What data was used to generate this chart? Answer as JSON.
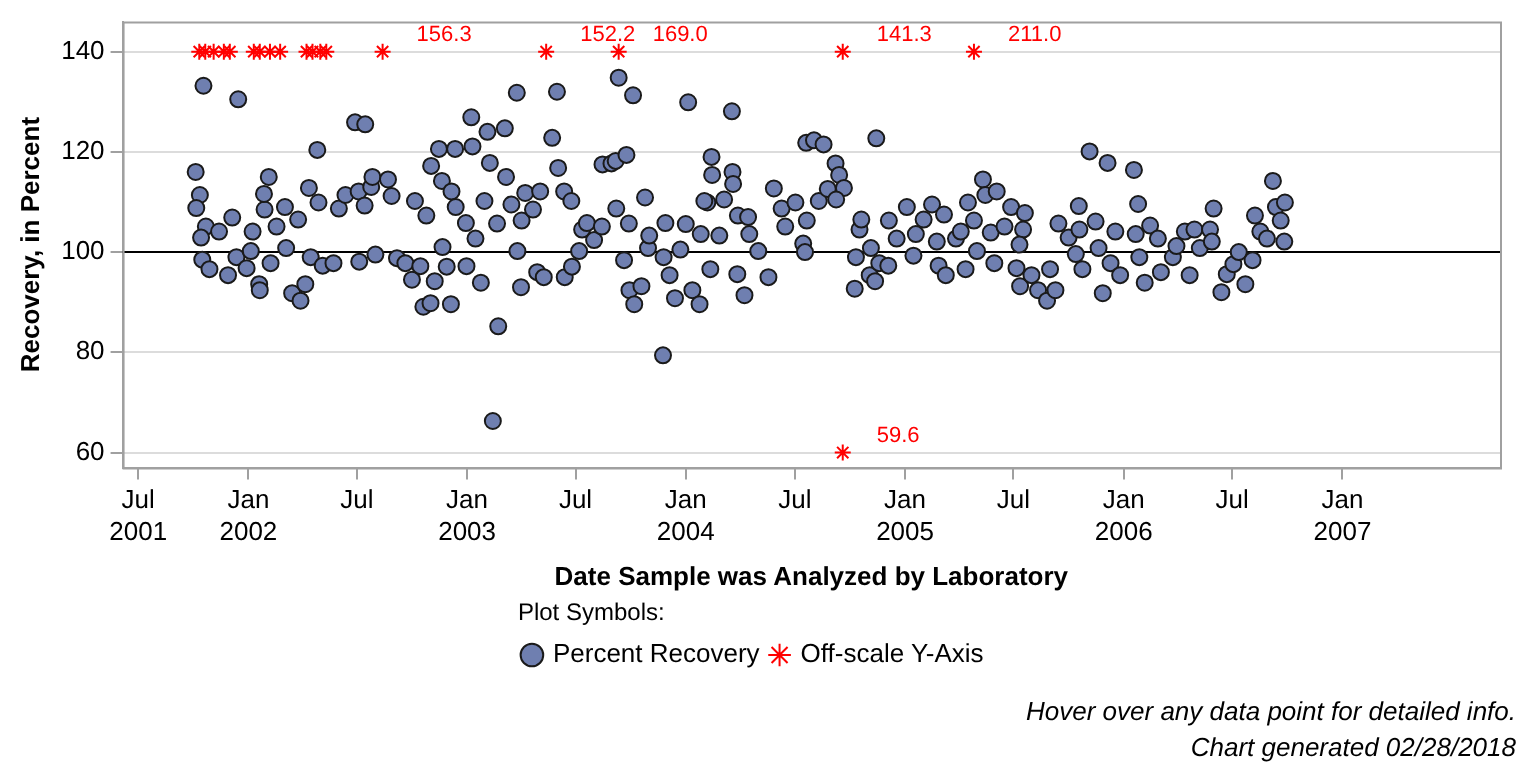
{
  "chart_data": {
    "type": "scatter",
    "xlabel": "Date Sample was Analyzed by Laboratory",
    "ylabel": "Recovery, in Percent",
    "legend_title": "Plot Symbols:",
    "legend": "bottom",
    "grid": "y",
    "xlim": [
      "2001-06-05",
      "2007-09-21"
    ],
    "ylim": [
      57,
      146
    ],
    "xticks": [
      {
        "value": "2001-07-01",
        "label": "Jul 2001"
      },
      {
        "value": "2002-01-01",
        "label": "Jan 2002"
      },
      {
        "value": "2002-07-01",
        "label": "Jul"
      },
      {
        "value": "2003-01-01",
        "label": "Jan 2003"
      },
      {
        "value": "2003-07-01",
        "label": "Jul"
      },
      {
        "value": "2004-01-01",
        "label": "Jan 2004"
      },
      {
        "value": "2004-07-01",
        "label": "Jul"
      },
      {
        "value": "2005-01-01",
        "label": "Jan 2005"
      },
      {
        "value": "2005-07-01",
        "label": "Jul"
      },
      {
        "value": "2006-01-01",
        "label": "Jan 2006"
      },
      {
        "value": "2006-07-01",
        "label": "Jul"
      },
      {
        "value": "2007-01-01",
        "label": "Jan 2007"
      }
    ],
    "yticks": [
      60,
      80,
      100,
      120,
      140
    ],
    "ref_lines": [
      {
        "axis": "y",
        "value": 100,
        "color": "#000000"
      }
    ],
    "series": [
      {
        "name": "Percent Recovery",
        "color": "#6f7fb0",
        "marker": "circle",
        "x": [
          "2001-10-18",
          "2001-12-15",
          "2001-10-05",
          "2001-10-12",
          "2001-10-06",
          "2001-10-22",
          "2001-10-14",
          "2001-10-16",
          "2001-10-28",
          "2001-11-13",
          "2001-11-28",
          "2001-12-05",
          "2001-12-12",
          "2001-12-29",
          "2002-01-05",
          "2002-01-08",
          "2002-01-19",
          "2002-01-20",
          "2002-01-28",
          "2002-02-04",
          "2002-01-27",
          "2002-02-07",
          "2002-02-17",
          "2002-03-03",
          "2002-03-05",
          "2002-03-15",
          "2002-03-29",
          "2002-04-06",
          "2002-03-25",
          "2002-04-12",
          "2002-04-26",
          "2002-04-28",
          "2002-04-15",
          "2002-05-05",
          "2002-05-23",
          "2002-06-01",
          "2002-06-12",
          "2002-06-28",
          "2002-07-15",
          "2002-07-04",
          "2002-07-05",
          "2002-07-14",
          "2002-07-25",
          "2002-07-27",
          "2002-08-01",
          "2002-08-22",
          "2002-08-28",
          "2002-09-06",
          "2002-09-20",
          "2002-10-01",
          "2002-10-06",
          "2002-10-15",
          "2002-10-20",
          "2002-11-01",
          "2002-10-25",
          "2002-11-02",
          "2002-11-08",
          "2002-11-15",
          "2002-11-20",
          "2002-11-21",
          "2002-11-28",
          "2002-12-05",
          "2002-12-06",
          "2002-12-12",
          "2002-12-13",
          "2002-12-30",
          "2002-12-31",
          "2003-01-08",
          "2003-01-10",
          "2003-01-15",
          "2003-01-24",
          "2003-01-30",
          "2003-02-04",
          "2003-02-08",
          "2003-02-13",
          "2003-02-22",
          "2003-02-20",
          "2003-03-05",
          "2003-03-07",
          "2003-03-16",
          "2003-03-25",
          "2003-03-26",
          "2003-04-01",
          "2003-04-02",
          "2003-04-08",
          "2003-04-21",
          "2003-05-03",
          "2003-04-28",
          "2003-05-09",
          "2003-05-23",
          "2003-05-31",
          "2003-06-02",
          "2003-06-12",
          "2003-06-13",
          "2003-06-24",
          "2003-06-25",
          "2003-07-07",
          "2003-07-12",
          "2003-07-20",
          "2003-08-01",
          "2003-08-14",
          "2003-08-15",
          "2003-08-30",
          "2003-09-06",
          "2003-09-24",
          "2003-09-07",
          "2003-09-11",
          "2003-10-05",
          "2003-09-20",
          "2003-09-28",
          "2003-09-29",
          "2003-10-07",
          "2003-10-19",
          "2003-10-25",
          "2003-10-30",
          "2003-11-01",
          "2003-11-24",
          "2003-11-28",
          "2003-11-25",
          "2003-12-05",
          "2003-12-14",
          "2003-12-23",
          "2004-01-01",
          "2004-01-05",
          "2004-01-12",
          "2004-01-24",
          "2004-01-26",
          "2004-02-13",
          "2004-02-14",
          "2004-02-06",
          "2004-02-11",
          "2004-03-18",
          "2004-03-19",
          "2004-03-20",
          "2004-02-01",
          "2004-03-05",
          "2004-03-28",
          "2004-04-14",
          "2004-03-27",
          "2004-04-08",
          "2004-05-18",
          "2004-02-26",
          "2004-04-16",
          "2004-05-01",
          "2004-05-27",
          "2004-06-09",
          "2004-06-15",
          "2004-07-02",
          "2004-07-15",
          "2004-07-18",
          "2004-07-20",
          "2004-08-02",
          "2004-08-18",
          "2004-07-21",
          "2004-08-10",
          "2004-08-25",
          "2004-09-07",
          "2004-09-13",
          "2004-09-21",
          "2004-09-08",
          "2004-10-09",
          "2004-10-11",
          "2004-10-17",
          "2004-10-20",
          "2004-11-03",
          "2004-11-14",
          "2004-11-12",
          "2004-11-19",
          "2004-11-05",
          "2004-12-04",
          "2004-12-05",
          "2004-12-18",
          "2005-01-04",
          "2005-01-19",
          "2005-01-15",
          "2005-02-01",
          "2005-02-15",
          "2005-02-23",
          "2005-02-26",
          "2005-03-07",
          "2005-03-10",
          "2005-03-27",
          "2005-04-04",
          "2005-04-12",
          "2005-04-16",
          "2005-04-26",
          "2005-05-01",
          "2005-05-11",
          "2005-05-15",
          "2005-06-03",
          "2005-05-24",
          "2005-05-30",
          "2005-06-16",
          "2005-06-27",
          "2005-07-17",
          "2005-07-11",
          "2005-07-06",
          "2005-07-12",
          "2005-07-20",
          "2005-07-31",
          "2005-08-11",
          "2005-08-26",
          "2005-08-31",
          "2005-09-09",
          "2005-09-14",
          "2005-10-01",
          "2005-10-18",
          "2005-10-19",
          "2005-10-13",
          "2005-10-24",
          "2005-11-05",
          "2005-11-15",
          "2005-11-20",
          "2005-11-27",
          "2005-12-05",
          "2005-12-10",
          "2005-12-18",
          "2005-12-26",
          "2006-01-18",
          "2006-01-25",
          "2006-01-21",
          "2006-01-27",
          "2006-02-05",
          "2006-02-14",
          "2006-02-27",
          "2006-03-04",
          "2006-03-24",
          "2006-03-30",
          "2006-04-13",
          "2006-04-21",
          "2006-04-29",
          "2006-05-08",
          "2006-05-25",
          "2006-05-31",
          "2006-05-28",
          "2006-06-13",
          "2006-06-22",
          "2006-07-03",
          "2006-07-12",
          "2006-07-23",
          "2006-08-04",
          "2006-08-08",
          "2006-08-17",
          "2006-08-28",
          "2006-09-07",
          "2006-09-12",
          "2006-09-20",
          "2006-09-27",
          "2006-09-26"
        ],
        "values": [
          133.2,
          130.5,
          116.0,
          111.4,
          108.8,
          105.1,
          102.9,
          98.5,
          96.6,
          104.1,
          95.4,
          106.9,
          99.0,
          96.8,
          100.2,
          104.1,
          93.6,
          92.4,
          108.5,
          115.0,
          111.6,
          97.8,
          105.1,
          109.0,
          100.8,
          91.8,
          90.3,
          93.6,
          106.5,
          112.8,
          120.4,
          109.9,
          99.0,
          97.3,
          97.8,
          108.7,
          111.4,
          125.9,
          125.5,
          112.1,
          98.1,
          109.3,
          113.0,
          115.0,
          99.5,
          114.5,
          111.2,
          98.8,
          97.8,
          94.5,
          110.2,
          97.2,
          89.1,
          89.8,
          107.3,
          117.2,
          94.2,
          120.6,
          114.2,
          101.0,
          97.1,
          89.6,
          112.1,
          120.6,
          109.0,
          105.8,
          97.2,
          126.9,
          121.1,
          102.7,
          93.9,
          110.2,
          124.0,
          117.8,
          66.3,
          85.2,
          105.7,
          124.7,
          115.0,
          109.5,
          131.8,
          100.2,
          93.0,
          106.3,
          111.8,
          108.5,
          112.1,
          96.0,
          95.0,
          122.8,
          132.0,
          116.8,
          112.1,
          95.0,
          110.2,
          97.1,
          100.2,
          104.5,
          105.8,
          102.4,
          105.1,
          117.5,
          117.7,
          118.2,
          119.4,
          108.7,
          134.8,
          131.3,
          98.4,
          105.7,
          92.4,
          89.6,
          93.2,
          110.9,
          100.8,
          103.3,
          79.4,
          105.8,
          99.0,
          95.4,
          90.8,
          100.5,
          105.6,
          129.9,
          92.4,
          89.6,
          103.6,
          119.0,
          115.4,
          109.9,
          96.6,
          128.1,
          116.0,
          113.6,
          110.2,
          110.5,
          107.3,
          107.0,
          95.6,
          91.4,
          95.0,
          103.3,
          103.6,
          100.2,
          112.7,
          108.7,
          105.1,
          109.9,
          101.7,
          100.0,
          121.8,
          122.3,
          121.5,
          106.3,
          110.2,
          112.6,
          117.7,
          115.4,
          112.8,
          110.5,
          92.7,
          99.0,
          104.5,
          106.5,
          95.4,
          122.7,
          94.2,
          97.8,
          100.8,
          97.3,
          106.3,
          102.7,
          109.0,
          103.6,
          99.3,
          106.5,
          109.5,
          102.1,
          97.3,
          107.5,
          95.4,
          102.7,
          104.1,
          96.6,
          109.9,
          106.3,
          100.2,
          114.5,
          111.4,
          112.1,
          103.9,
          97.8,
          105.1,
          109.0,
          104.5,
          101.5,
          96.8,
          93.2,
          107.8,
          95.4,
          92.4,
          90.3,
          96.6,
          92.4,
          105.7,
          102.9,
          109.2,
          104.5,
          99.6,
          96.6,
          120.1,
          106.1,
          100.8,
          91.8,
          117.8,
          97.8,
          104.1,
          95.4,
          116.4,
          109.6,
          103.6,
          99.0,
          93.9,
          105.3,
          102.7,
          96.0,
          99.0,
          101.2,
          104.1,
          95.4,
          104.5,
          100.8,
          104.5,
          108.7,
          102.1,
          92.0,
          95.6,
          97.6,
          100.0,
          93.6,
          98.4,
          107.3,
          104.1,
          102.7,
          114.2,
          109.0,
          106.3,
          109.9,
          102.1
        ]
      },
      {
        "name": "Off-scale Y-Axis",
        "color": "#ff0000",
        "marker": "cross",
        "x": [
          "2001-10-11",
          "2001-10-21",
          "2001-11-04",
          "2001-11-21",
          "2001-12-01",
          "2002-01-10",
          "2002-01-20",
          "2002-02-06",
          "2002-02-23",
          "2002-04-08",
          "2002-04-18",
          "2002-05-01",
          "2002-05-11",
          "2002-08-13",
          "2003-05-13",
          "2003-09-11",
          "2004-09-19",
          "2004-09-19",
          "2005-04-26"
        ],
        "values": [
          140,
          140,
          140,
          140,
          140,
          140,
          140,
          140,
          140,
          140,
          140,
          140,
          140,
          140,
          140,
          140,
          140,
          60,
          140
        ]
      }
    ],
    "annotations": [
      {
        "text": "156.3",
        "x": "2002-08-13",
        "y": 140
      },
      {
        "text": "152.2",
        "x": "2003-05-13",
        "y": 140
      },
      {
        "text": "169.0",
        "x": "2003-09-11",
        "y": 140
      },
      {
        "text": "141.3",
        "x": "2004-09-19",
        "y": 140
      },
      {
        "text": "211.0",
        "x": "2005-04-26",
        "y": 140
      },
      {
        "text": "59.6",
        "x": "2004-09-19",
        "y": 60
      },
      "Hover over any data point for detailed info.",
      "Chart generated 02/28/2018"
    ]
  }
}
